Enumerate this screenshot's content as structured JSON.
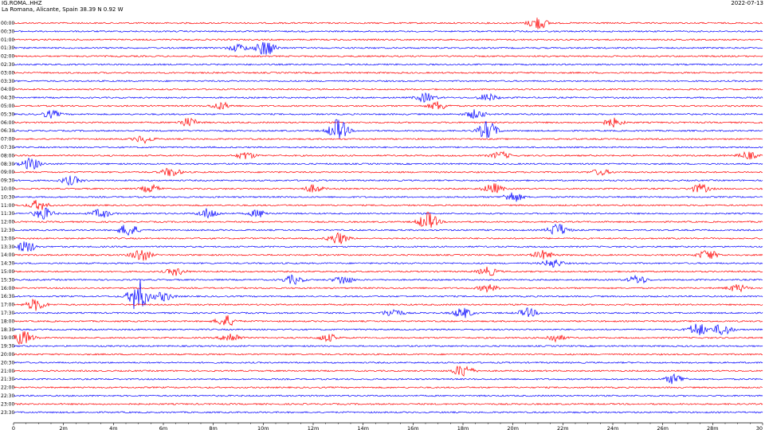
{
  "header": {
    "station": "IG.ROMA..HHZ",
    "location": "La Romana, Alicante, Spain  38.39 N 0.92 W",
    "date": "2022-07-13"
  },
  "colors": {
    "odd_rows": "#ff0000",
    "even_rows": "#0000ff",
    "axis": "#000000"
  },
  "chart_data": {
    "type": "line",
    "title": "IG.ROMA..HHZ",
    "subtitle": "La Romana, Alicante, Spain  38.39 N 0.92 W",
    "xlabel": "",
    "ylabel": "",
    "xlim": [
      0,
      30
    ],
    "x_unit": "minutes",
    "x_ticks": [
      "0",
      "2m",
      "4m",
      "6m",
      "8m",
      "10m",
      "12m",
      "14m",
      "16m",
      "18m",
      "20m",
      "22m",
      "24m",
      "26m",
      "28m",
      "30"
    ],
    "rows": [
      "00:00",
      "00:30",
      "01:00",
      "01:30",
      "02:00",
      "02:30",
      "03:00",
      "03:30",
      "04:00",
      "04:30",
      "05:00",
      "05:30",
      "06:00",
      "06:30",
      "07:00",
      "07:30",
      "08:00",
      "08:30",
      "09:00",
      "09:30",
      "10:00",
      "10:30",
      "11:00",
      "11:30",
      "12:00",
      "12:30",
      "13:00",
      "13:30",
      "14:00",
      "14:30",
      "15:00",
      "15:30",
      "16:00",
      "16:30",
      "17:00",
      "17:30",
      "18:00",
      "18:30",
      "19:00",
      "19:30",
      "20:00",
      "20:30",
      "21:00",
      "21:30",
      "22:00",
      "22:30",
      "23:00",
      "23:30"
    ],
    "row_colors": [
      "#ff0000",
      "#0000ff"
    ],
    "events": [
      {
        "row": "00:00",
        "minute": 21.0,
        "amplitude": 0.9
      },
      {
        "row": "01:30",
        "minute": 10.1,
        "amplitude": 1.1
      },
      {
        "row": "01:30",
        "minute": 9.0,
        "amplitude": 0.5
      },
      {
        "row": "04:30",
        "minute": 16.5,
        "amplitude": 0.6
      },
      {
        "row": "04:30",
        "minute": 19.0,
        "amplitude": 0.5
      },
      {
        "row": "05:00",
        "minute": 8.3,
        "amplitude": 0.5
      },
      {
        "row": "05:00",
        "minute": 17.0,
        "amplitude": 0.6
      },
      {
        "row": "05:30",
        "minute": 1.5,
        "amplitude": 0.5
      },
      {
        "row": "05:30",
        "minute": 18.5,
        "amplitude": 0.6
      },
      {
        "row": "06:00",
        "minute": 7.0,
        "amplitude": 0.6
      },
      {
        "row": "06:00",
        "minute": 24.0,
        "amplitude": 0.6
      },
      {
        "row": "06:30",
        "minute": 13.0,
        "amplitude": 1.6
      },
      {
        "row": "06:30",
        "minute": 19.0,
        "amplitude": 1.3
      },
      {
        "row": "07:00",
        "minute": 5.2,
        "amplitude": 0.5
      },
      {
        "row": "08:00",
        "minute": 9.3,
        "amplitude": 0.5
      },
      {
        "row": "08:00",
        "minute": 19.5,
        "amplitude": 0.5
      },
      {
        "row": "08:00",
        "minute": 29.4,
        "amplitude": 0.5
      },
      {
        "row": "08:30",
        "minute": 0.7,
        "amplitude": 0.8
      },
      {
        "row": "09:00",
        "minute": 6.3,
        "amplitude": 0.6
      },
      {
        "row": "09:00",
        "minute": 23.5,
        "amplitude": 0.4
      },
      {
        "row": "09:30",
        "minute": 2.3,
        "amplitude": 0.6
      },
      {
        "row": "10:00",
        "minute": 5.5,
        "amplitude": 0.5
      },
      {
        "row": "10:00",
        "minute": 12.0,
        "amplitude": 0.5
      },
      {
        "row": "10:00",
        "minute": 19.2,
        "amplitude": 0.7
      },
      {
        "row": "10:00",
        "minute": 27.5,
        "amplitude": 0.6
      },
      {
        "row": "10:30",
        "minute": 20.0,
        "amplitude": 0.7
      },
      {
        "row": "11:00",
        "minute": 1.0,
        "amplitude": 0.7
      },
      {
        "row": "11:30",
        "minute": 1.2,
        "amplitude": 0.8
      },
      {
        "row": "11:30",
        "minute": 3.5,
        "amplitude": 0.6
      },
      {
        "row": "11:30",
        "minute": 7.8,
        "amplitude": 0.7
      },
      {
        "row": "11:30",
        "minute": 9.8,
        "amplitude": 0.5
      },
      {
        "row": "12:00",
        "minute": 16.6,
        "amplitude": 1.3
      },
      {
        "row": "12:30",
        "minute": 4.6,
        "amplitude": 0.9
      },
      {
        "row": "12:30",
        "minute": 21.8,
        "amplitude": 0.9
      },
      {
        "row": "13:00",
        "minute": 13.0,
        "amplitude": 0.8
      },
      {
        "row": "13:30",
        "minute": 0.5,
        "amplitude": 0.8
      },
      {
        "row": "14:00",
        "minute": 5.1,
        "amplitude": 0.9
      },
      {
        "row": "14:00",
        "minute": 21.2,
        "amplitude": 0.6
      },
      {
        "row": "14:00",
        "minute": 27.8,
        "amplitude": 0.7
      },
      {
        "row": "14:30",
        "minute": 21.6,
        "amplitude": 0.6
      },
      {
        "row": "15:00",
        "minute": 6.5,
        "amplitude": 0.5
      },
      {
        "row": "15:00",
        "minute": 19.0,
        "amplitude": 0.6
      },
      {
        "row": "15:30",
        "minute": 11.2,
        "amplitude": 0.6
      },
      {
        "row": "15:30",
        "minute": 13.2,
        "amplitude": 0.6
      },
      {
        "row": "15:30",
        "minute": 25.0,
        "amplitude": 0.6
      },
      {
        "row": "16:00",
        "minute": 19.0,
        "amplitude": 0.5
      },
      {
        "row": "16:00",
        "minute": 29.0,
        "amplitude": 0.5
      },
      {
        "row": "16:30",
        "minute": 5.0,
        "amplitude": 2.3
      },
      {
        "row": "16:30",
        "minute": 6.0,
        "amplitude": 0.6
      },
      {
        "row": "17:00",
        "minute": 0.9,
        "amplitude": 0.8
      },
      {
        "row": "17:30",
        "minute": 15.2,
        "amplitude": 0.6
      },
      {
        "row": "17:30",
        "minute": 18.0,
        "amplitude": 0.7
      },
      {
        "row": "17:30",
        "minute": 20.6,
        "amplitude": 0.6
      },
      {
        "row": "18:00",
        "minute": 8.5,
        "amplitude": 0.8
      },
      {
        "row": "18:30",
        "minute": 27.4,
        "amplitude": 0.9
      },
      {
        "row": "18:30",
        "minute": 28.4,
        "amplitude": 0.8
      },
      {
        "row": "19:00",
        "minute": 0.4,
        "amplitude": 1.0
      },
      {
        "row": "19:00",
        "minute": 8.7,
        "amplitude": 0.7
      },
      {
        "row": "19:00",
        "minute": 12.6,
        "amplitude": 0.5
      },
      {
        "row": "19:00",
        "minute": 21.7,
        "amplitude": 0.5
      },
      {
        "row": "21:00",
        "minute": 18.0,
        "amplitude": 0.9
      },
      {
        "row": "21:30",
        "minute": 26.5,
        "amplitude": 0.7
      }
    ]
  }
}
